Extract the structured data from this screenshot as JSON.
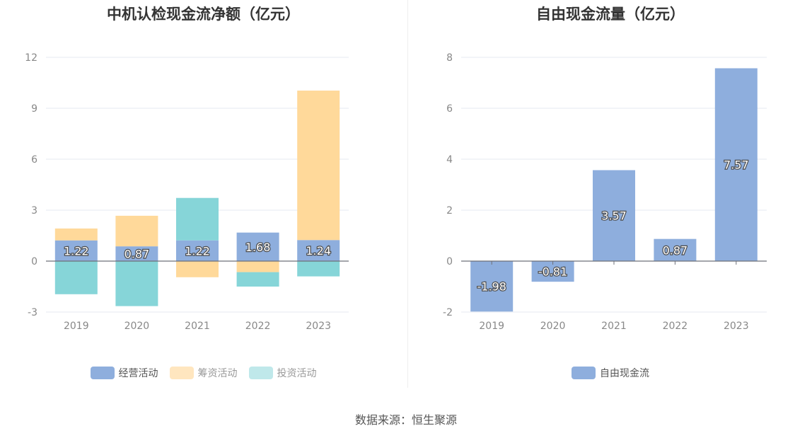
{
  "source": "数据来源：恒生聚源",
  "colors": {
    "operating": "#8eaedd",
    "financing": "#ffd99a",
    "investing": "#86d5d8",
    "free_cash_flow": "#8eaedd",
    "axis": "#6e7079",
    "grid": "#e6e9f0",
    "tick_text": "#888888"
  },
  "chart_data": [
    {
      "type": "bar",
      "stacked": true,
      "title": "中机认检现金流净额（亿元）",
      "categories": [
        "2019",
        "2020",
        "2021",
        "2022",
        "2023"
      ],
      "ylim": [
        -3,
        12
      ],
      "yticks": [
        -3,
        0,
        3,
        6,
        9,
        12
      ],
      "grid": true,
      "legend_position": "bottom",
      "series": [
        {
          "name": "经营活动",
          "values": [
            1.22,
            0.87,
            1.22,
            1.68,
            1.24
          ],
          "labels": [
            "1.22",
            "0.87",
            "1.22",
            "1.68",
            "1.24"
          ]
        },
        {
          "name": "筹资活动",
          "values": [
            0.7,
            1.8,
            -0.95,
            -0.65,
            8.8
          ]
        },
        {
          "name": "投资活动",
          "values": [
            -1.95,
            -2.65,
            2.5,
            -0.85,
            -0.9
          ]
        }
      ]
    },
    {
      "type": "bar",
      "title": "自由现金流量（亿元）",
      "categories": [
        "2019",
        "2020",
        "2021",
        "2022",
        "2023"
      ],
      "ylim": [
        -2,
        8
      ],
      "yticks": [
        -2,
        0,
        2,
        4,
        6,
        8
      ],
      "grid": true,
      "legend_position": "bottom",
      "series": [
        {
          "name": "自由现金流",
          "values": [
            -1.98,
            -0.81,
            3.57,
            0.87,
            7.57
          ],
          "labels": [
            "-1.98",
            "-0.81",
            "3.57",
            "0.87",
            "7.57"
          ]
        }
      ]
    }
  ]
}
